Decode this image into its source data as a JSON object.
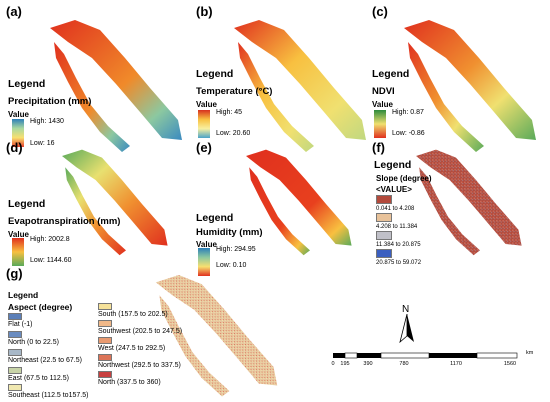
{
  "panels": {
    "a": {
      "label": "(a)",
      "legend_title": "Legend",
      "variable": "Precipitation (mm)",
      "value_label": "Value",
      "high": "High: 1430",
      "low": "Low: 16"
    },
    "b": {
      "label": "(b)",
      "legend_title": "Legend",
      "variable": "Temperature (°C)",
      "value_label": "Value",
      "high": "High: 45",
      "low": "Low: 20.60"
    },
    "c": {
      "label": "(c)",
      "legend_title": "Legend",
      "variable": "NDVI",
      "value_label": "Value",
      "high": "High: 0.87",
      "low": "Low: -0.86"
    },
    "d": {
      "label": "(d)",
      "legend_title": "Legend",
      "variable": "Evapotranspiration (mm)",
      "value_label": "Value",
      "high": "High: 2002.8",
      "low": "Low: 1144.60"
    },
    "e": {
      "label": "(e)",
      "legend_title": "Legend",
      "variable": "Humidity (mm)",
      "value_label": "Value",
      "high": "High: 294.95",
      "low": "Low: 0.10"
    },
    "f": {
      "label": "(f)",
      "legend_title": "Legend",
      "variable": "Slope (degree)",
      "value_label": "<VALUE>",
      "classes": [
        {
          "label": "0.041 to 4.208",
          "color": "#b34a3c"
        },
        {
          "label": "4.208 to 11.384",
          "color": "#e8c29a"
        },
        {
          "label": "11.384 to 20.875",
          "color": "#c0c0c8"
        },
        {
          "label": "20.875 to 59.072",
          "color": "#3b5fc0"
        }
      ]
    },
    "g": {
      "label": "(g)",
      "legend_title": "Legend",
      "variable": "Aspect (degree)",
      "classes_left": [
        {
          "label": "Flat (-1)",
          "color": "#5b7fb8"
        },
        {
          "label": "North (0 to 22.5)",
          "color": "#6a8cc0"
        },
        {
          "label": "Northeast (22.5 to 67.5)",
          "color": "#a8b8c8"
        },
        {
          "label": "East (67.5 to 112.5)",
          "color": "#c8d4a8"
        },
        {
          "label": "Southeast (112.5 to157.5)",
          "color": "#f0e8b0"
        }
      ],
      "classes_right": [
        {
          "label": "South (157.5 to 202.5)",
          "color": "#f6e29a"
        },
        {
          "label": "Southwest (202.5 to 247.5)",
          "color": "#f0b888"
        },
        {
          "label": "West (247.5 to 292.5)",
          "color": "#e89a70"
        },
        {
          "label": "Northwest (292.5 to 337.5)",
          "color": "#dc7458"
        },
        {
          "label": "North (337.5 to 360)",
          "color": "#c84040"
        }
      ]
    }
  },
  "north_arrow": {
    "letter": "N"
  },
  "scale_bar": {
    "unit": "km",
    "ticks": [
      "0",
      "195",
      "390",
      "780",
      "1170",
      "1560"
    ]
  },
  "colors": {
    "ramp_a_top": "#2c7fb8",
    "ramp_a_bottom": "#e8402c",
    "ramp_b_top": "#d7301f",
    "ramp_b_bottom": "#4aa3c8",
    "map_red": "#e0301e",
    "map_green": "#5aaa5a"
  }
}
